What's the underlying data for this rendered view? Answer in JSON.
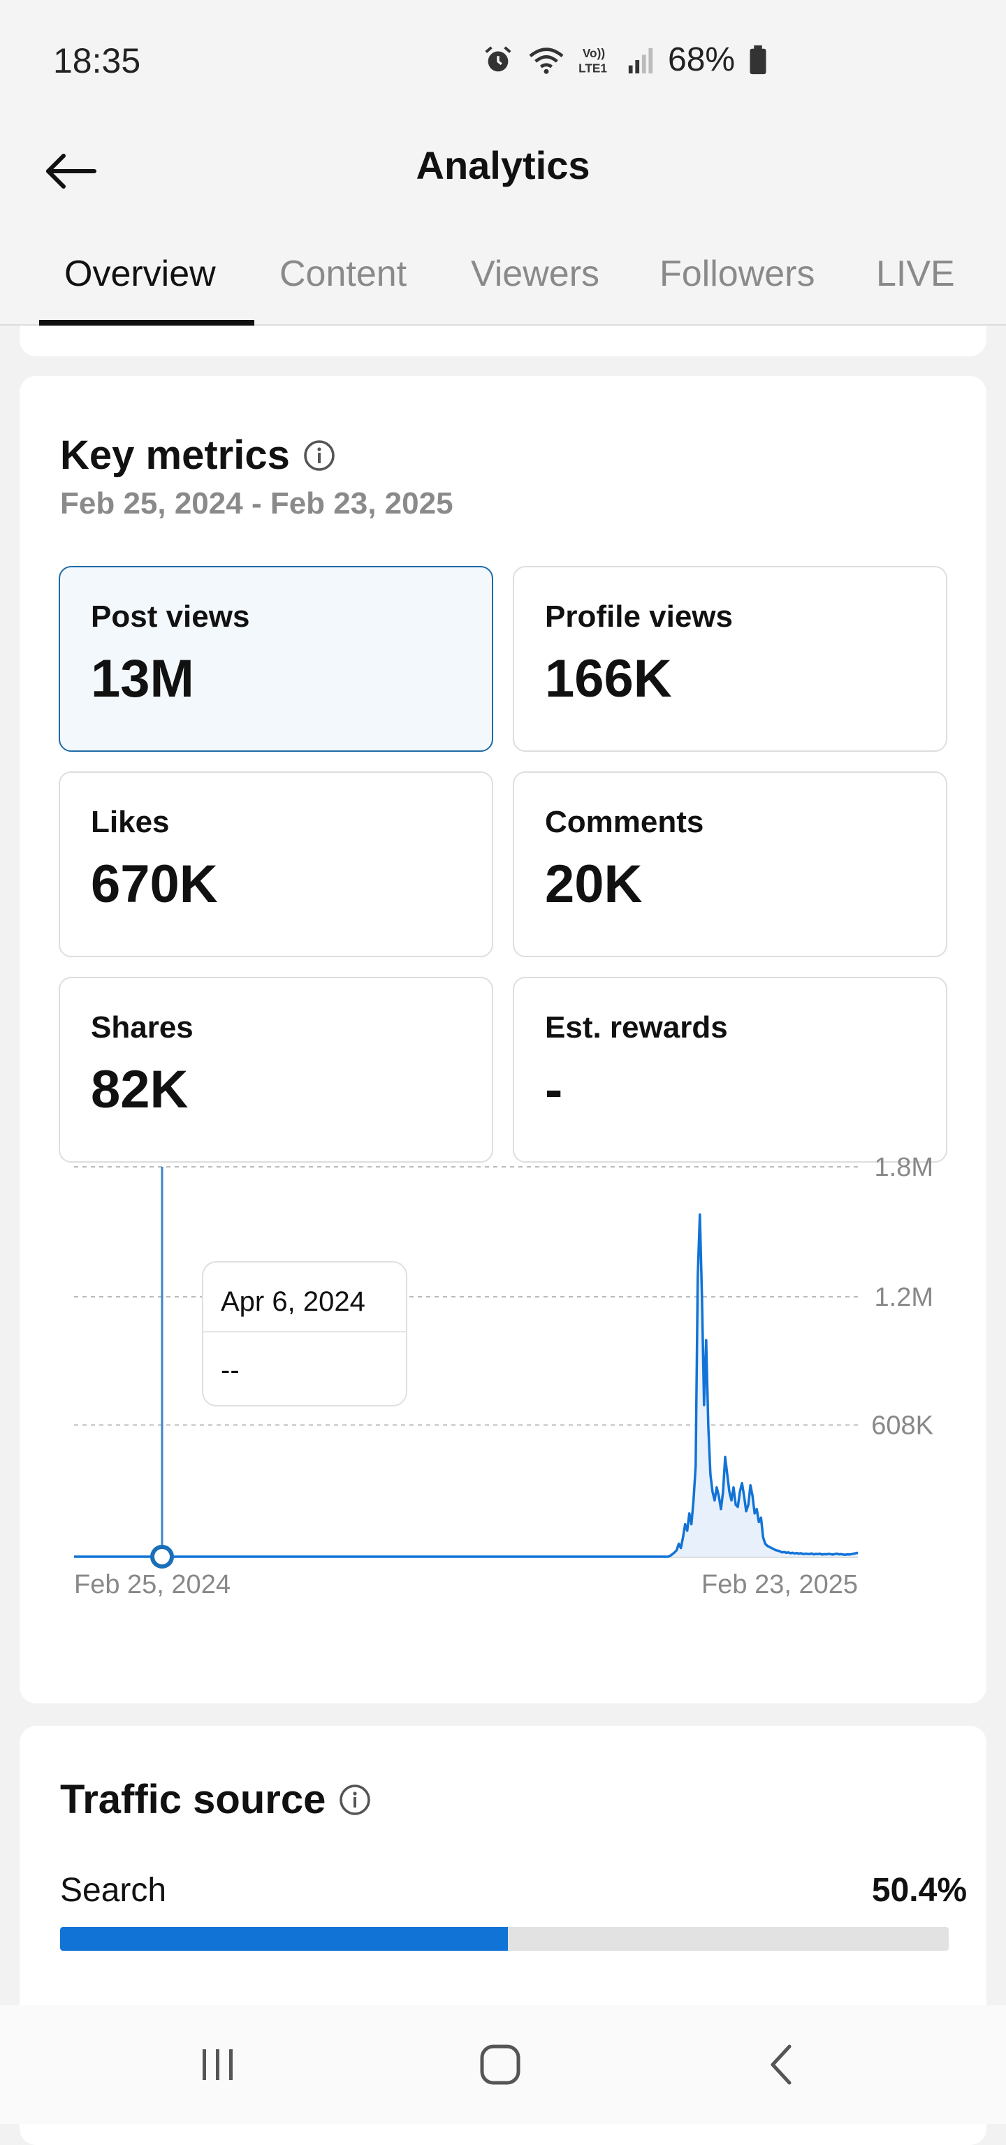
{
  "status_bar": {
    "time": "18:35",
    "battery": "68%"
  },
  "header": {
    "title": "Analytics"
  },
  "tabs": [
    {
      "label": "Overview",
      "active": true
    },
    {
      "label": "Content",
      "active": false
    },
    {
      "label": "Viewers",
      "active": false
    },
    {
      "label": "Followers",
      "active": false
    },
    {
      "label": "LIVE",
      "active": false
    }
  ],
  "key_metrics": {
    "title": "Key metrics",
    "date_range": "Feb 25, 2024 - Feb 23, 2025",
    "metrics": [
      {
        "label": "Post views",
        "value": "13M",
        "selected": true
      },
      {
        "label": "Profile views",
        "value": "166K",
        "selected": false
      },
      {
        "label": "Likes",
        "value": "670K",
        "selected": false
      },
      {
        "label": "Comments",
        "value": "20K",
        "selected": false
      },
      {
        "label": "Shares",
        "value": "82K",
        "selected": false
      },
      {
        "label": "Est. rewards",
        "value": "-",
        "selected": false
      }
    ]
  },
  "chart_data": {
    "type": "line",
    "x_start_label": "Feb 25, 2024",
    "x_end_label": "Feb 23, 2025",
    "y_ticks": [
      "1.8M",
      "1.2M",
      "608K"
    ],
    "ylim": [
      0,
      1820000
    ],
    "grid": true,
    "color": "#1273d7",
    "tooltip": {
      "date": "Apr 6, 2024",
      "value": "--"
    },
    "values": [
      0,
      0,
      0,
      0,
      0,
      0,
      0,
      0,
      0,
      0,
      0,
      0,
      0,
      0,
      0,
      0,
      0,
      0,
      0,
      0,
      0,
      0,
      0,
      0,
      0,
      0,
      0,
      0,
      0,
      0,
      0,
      0,
      0,
      0,
      0,
      0,
      0,
      0,
      0,
      0,
      0,
      0,
      0,
      0,
      0,
      0,
      0,
      0,
      0,
      0,
      0,
      0,
      0,
      0,
      0,
      0,
      0,
      0,
      0,
      0,
      0,
      0,
      0,
      0,
      0,
      0,
      0,
      0,
      0,
      0,
      0,
      0,
      0,
      0,
      0,
      0,
      0,
      0,
      0,
      0,
      0,
      0,
      0,
      0,
      0,
      0,
      0,
      0,
      0,
      0,
      0,
      0,
      0,
      0,
      0,
      0,
      0,
      0,
      0,
      0,
      0,
      0,
      0,
      0,
      0,
      0,
      0,
      0,
      0,
      0,
      0,
      0,
      0,
      0,
      0,
      0,
      0,
      0,
      0,
      0,
      0,
      0,
      0,
      0,
      0,
      0,
      0,
      0,
      0,
      0,
      0,
      0,
      0,
      0,
      0,
      0,
      0,
      0,
      0,
      0,
      0,
      0,
      0,
      0,
      0,
      0,
      0,
      0,
      0,
      0,
      0,
      0,
      0,
      0,
      0,
      0,
      0,
      0,
      0,
      0,
      0,
      0,
      0,
      0,
      0,
      0,
      0,
      0,
      0,
      0,
      0,
      0,
      0,
      0,
      0,
      0,
      0,
      0,
      0,
      0,
      0,
      0,
      0,
      0,
      0,
      0,
      0,
      0,
      0,
      0,
      0,
      0,
      0,
      0,
      0,
      0,
      0,
      0,
      0,
      0,
      0,
      0,
      0,
      0,
      0,
      0,
      0,
      0,
      0,
      0,
      0,
      0,
      0,
      0,
      0,
      0,
      0,
      0,
      0,
      0,
      0,
      0,
      0,
      0,
      0,
      0,
      0,
      0,
      0,
      0,
      0,
      0,
      0,
      0,
      0,
      0,
      0,
      0,
      0,
      0,
      0,
      0,
      0,
      0,
      0,
      0,
      0,
      0,
      0,
      0,
      0,
      0,
      0,
      0,
      0,
      0,
      0,
      0,
      0,
      0,
      0,
      0,
      0,
      0,
      0,
      0,
      0,
      0,
      0,
      0,
      0,
      0,
      0,
      0,
      0,
      0,
      0,
      0,
      0,
      0,
      0,
      0,
      0,
      5000,
      12000,
      20000,
      30000,
      60000,
      40000,
      90000,
      150000,
      120000,
      200000,
      150000,
      260000,
      420000,
      1300000,
      1580000,
      1200000,
      700000,
      1000000,
      600000,
      380000,
      300000,
      260000,
      320000,
      280000,
      220000,
      300000,
      460000,
      380000,
      300000,
      260000,
      320000,
      240000,
      230000,
      300000,
      340000,
      280000,
      210000,
      240000,
      330000,
      280000,
      200000,
      220000,
      160000,
      180000,
      90000,
      60000,
      50000,
      45000,
      40000,
      35000,
      30000,
      28000,
      25000,
      20000,
      22000,
      18000,
      20000,
      16000,
      18000,
      15000,
      17000,
      14000,
      16000,
      12000,
      14000,
      13000,
      12000,
      15000,
      11000,
      13000,
      12000,
      14000,
      10000,
      12000,
      11000,
      13000,
      12000,
      10000,
      12000,
      14000,
      11000,
      12000,
      10000,
      9000,
      11000,
      10000,
      12000,
      14000,
      16000,
      18000
    ]
  },
  "traffic_source": {
    "title": "Traffic source",
    "rows": [
      {
        "label": "Search",
        "value": "50.4%",
        "percent": 50.4
      }
    ]
  }
}
